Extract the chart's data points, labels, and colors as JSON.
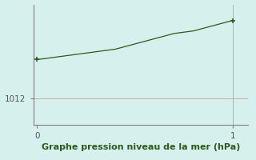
{
  "x": [
    0,
    0.1,
    0.2,
    0.3,
    0.4,
    0.5,
    0.6,
    0.7,
    0.8,
    0.9,
    1.0
  ],
  "y": [
    1013.5,
    1013.6,
    1013.7,
    1013.8,
    1013.9,
    1014.1,
    1014.3,
    1014.5,
    1014.6,
    1014.8,
    1015.0
  ],
  "line_color": "#2d5a1b",
  "marker_color": "#2d5a1b",
  "bg_color": "#d6f0ee",
  "grid_color_h": "#c8a8a8",
  "grid_color_v": "#a8b0c8",
  "axis_color": "#808080",
  "xlabel": "Graphe pression niveau de la mer (hPa)",
  "xlabel_color": "#2d5a1b",
  "ytick_label": "1012",
  "ytick_value": 1012,
  "xlim": [
    -0.02,
    1.08
  ],
  "ylim": [
    1011.0,
    1015.6
  ],
  "xticks": [
    0,
    1
  ],
  "yticks": [
    1012
  ],
  "xlabel_fontsize": 8,
  "tick_fontsize": 7.5
}
